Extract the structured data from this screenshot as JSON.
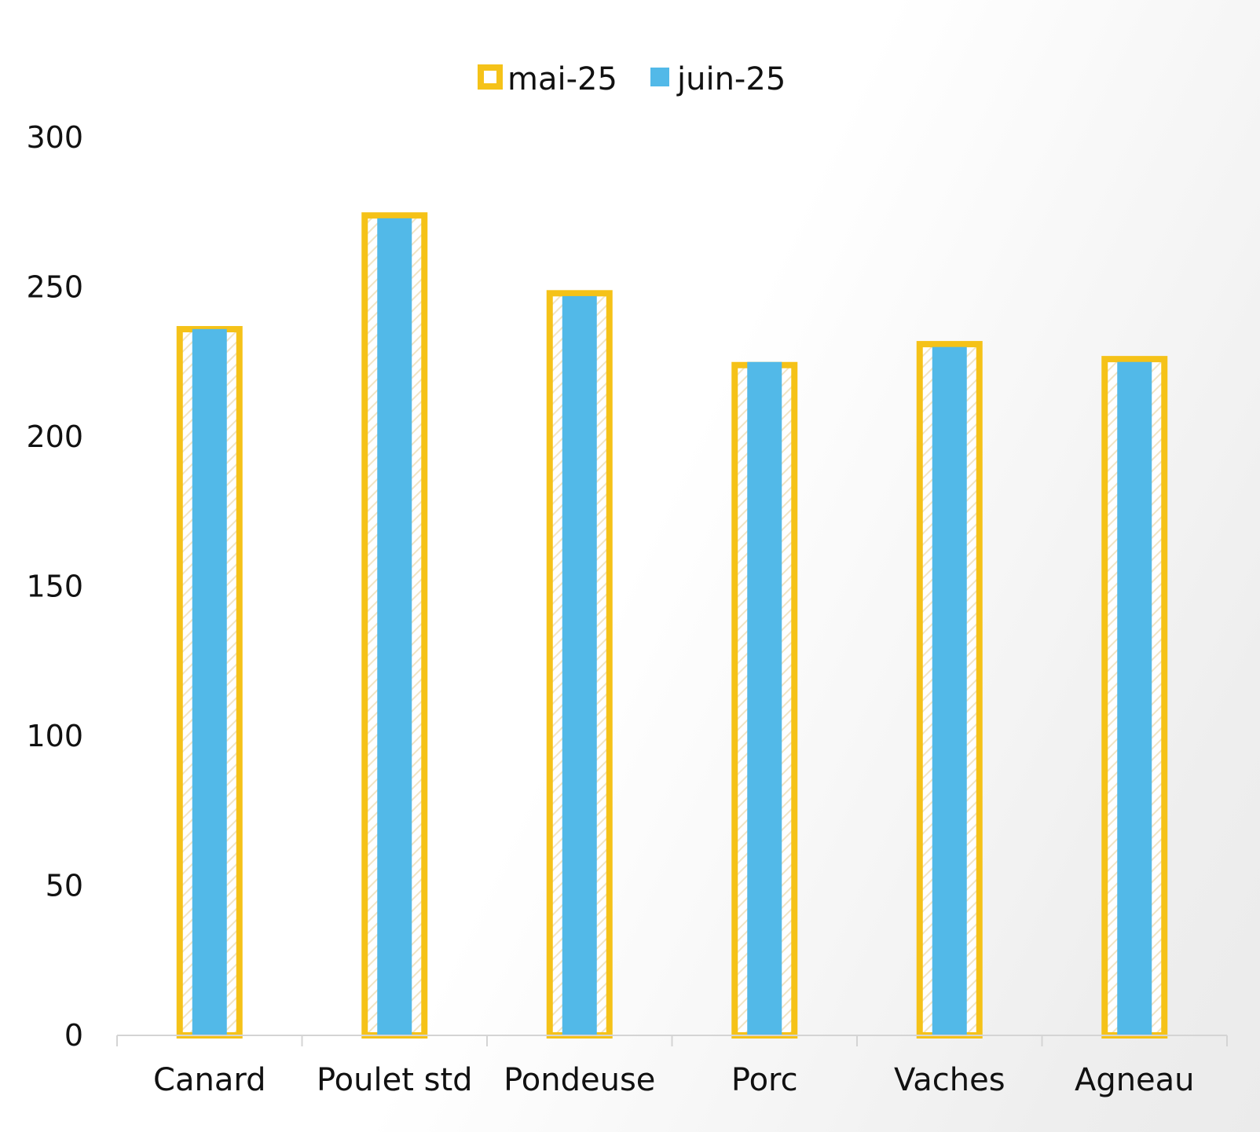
{
  "colors": {
    "series1_outline": "#F5C218",
    "series2_fill": "#52B9E8",
    "axis": "#d4d4d4",
    "text": "#111111"
  },
  "chart_data": {
    "type": "bar",
    "categories": [
      "Canard",
      "Poulet std",
      "Pondeuse",
      "Porc",
      "Vaches",
      "Agneau"
    ],
    "series": [
      {
        "name": "mai-25",
        "values": [
          237,
          275,
          249,
          225,
          232,
          227
        ],
        "style": "outline"
      },
      {
        "name": "juin-25",
        "values": [
          236,
          273,
          247,
          225,
          230,
          225
        ],
        "style": "solid"
      }
    ],
    "ylim": [
      0,
      300
    ],
    "yticks": [
      0,
      50,
      100,
      150,
      200,
      250,
      300
    ],
    "grid": false,
    "legend_position": "top-center",
    "title": "",
    "xlabel": "",
    "ylabel": ""
  }
}
